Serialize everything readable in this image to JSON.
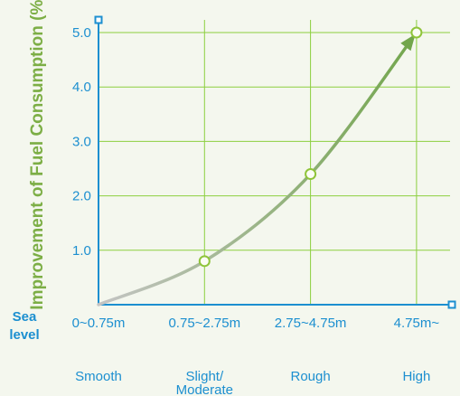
{
  "chart_data": {
    "type": "line",
    "title": "",
    "ylabel": "Improvement of Fuel Consumption (%)",
    "xlabel": "",
    "x_row_label_line1": "Sea",
    "x_row_label_line2": "level",
    "categories": [
      "0~0.75m",
      "0.75~2.75m",
      "2.75~4.75m",
      "4.75m~"
    ],
    "sea_conditions": [
      {
        "line1": "Smooth",
        "line2": ""
      },
      {
        "line1": "Slight/",
        "line2": "Moderate"
      },
      {
        "line1": "Rough",
        "line2": ""
      },
      {
        "line1": "High",
        "line2": ""
      }
    ],
    "y_ticks": [
      "1.0",
      "2.0",
      "3.0",
      "4.0",
      "5.0"
    ],
    "ylim": [
      0,
      5.0
    ],
    "grid": true,
    "series": [
      {
        "values": [
          0,
          0.8,
          2.4,
          5.0
        ],
        "marker_indices": [
          1,
          2,
          3
        ]
      }
    ],
    "colors": {
      "grid": "#8ccf3f",
      "axis": "#1c8fd0",
      "ylabel": "#7cae45",
      "curve_start": "#c4c4c4",
      "curve_end": "#72a64c",
      "marker_stroke": "#8fc43a",
      "marker_fill": "#fbfdf5",
      "text": "#1c8fd0"
    }
  }
}
